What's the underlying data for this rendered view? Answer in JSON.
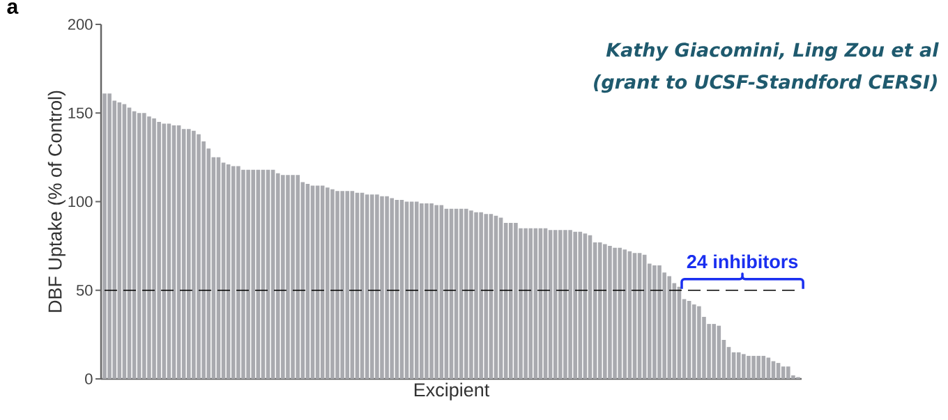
{
  "chart_data": {
    "type": "bar",
    "xlabel": "Excipient",
    "ylabel": "DBF Uptake (% of Control)",
    "categories": [
      null,
      null,
      null,
      null,
      null,
      null,
      null,
      null,
      null,
      null,
      null,
      null,
      null,
      null,
      null,
      null,
      null,
      null,
      null,
      null,
      null,
      null,
      null,
      null,
      null,
      null,
      null,
      null,
      null,
      null,
      null,
      null,
      null,
      null,
      null,
      null,
      null,
      null,
      null,
      null,
      null,
      null,
      null,
      null,
      null,
      null,
      null,
      null,
      null,
      null,
      null,
      null,
      null,
      null,
      null,
      null,
      null,
      null,
      null,
      null,
      null,
      null,
      null,
      null,
      null,
      null,
      null,
      null,
      null,
      null,
      null,
      null,
      null,
      null,
      null,
      null,
      null,
      null,
      null,
      null,
      null,
      null,
      null,
      null,
      null,
      null,
      null,
      null,
      null,
      null,
      null,
      null,
      null,
      null,
      null,
      null,
      null,
      null,
      null,
      null,
      null,
      null,
      null,
      null,
      null,
      null,
      null,
      null,
      null,
      null,
      null,
      null,
      null,
      null,
      null,
      null,
      null,
      null,
      null,
      null,
      null,
      null,
      null,
      null,
      null,
      null,
      null,
      null,
      null,
      null,
      null,
      null,
      null,
      null,
      null,
      null,
      null,
      null,
      null,
      null,
      null
    ],
    "values": [
      161,
      161,
      157,
      156,
      155,
      153,
      151,
      150,
      150,
      148,
      147,
      145,
      144,
      144,
      143,
      143,
      141,
      141,
      140,
      138,
      134,
      130,
      125,
      125,
      122,
      121,
      120,
      120,
      118,
      118,
      118,
      118,
      118,
      118,
      118,
      116,
      115,
      115,
      115,
      115,
      111,
      110,
      109,
      109,
      109,
      108,
      107,
      106,
      106,
      106,
      106,
      105,
      105,
      104,
      104,
      104,
      103,
      103,
      102,
      101,
      101,
      100,
      100,
      100,
      99,
      99,
      99,
      98,
      98,
      96,
      96,
      96,
      96,
      96,
      95,
      94,
      94,
      93,
      93,
      92,
      91,
      88,
      88,
      88,
      85,
      85,
      85,
      85,
      85,
      85,
      84,
      84,
      84,
      84,
      84,
      83,
      83,
      82,
      81,
      77,
      77,
      76,
      75,
      74,
      74,
      73,
      72,
      71,
      71,
      70,
      65,
      64,
      64,
      60,
      58,
      54,
      52,
      45,
      44,
      42,
      41,
      35,
      31,
      31,
      30,
      22,
      18,
      15,
      15,
      14,
      13,
      13,
      13,
      13,
      12,
      10,
      9,
      7,
      7,
      2,
      1
    ],
    "color": "#a9aaaf",
    "ylim": [
      0,
      200
    ],
    "yticks": [
      0,
      50,
      100,
      150,
      200
    ],
    "ref_lines": [
      {
        "axis": "y",
        "value": 50,
        "color": "#000000",
        "line_style": "dashed"
      }
    ],
    "annotations": [
      "a",
      "Kathy Giacomini, Ling Zou et al",
      "(grant to UCSF-Standford CERSI)",
      "24 inhibitors"
    ]
  }
}
